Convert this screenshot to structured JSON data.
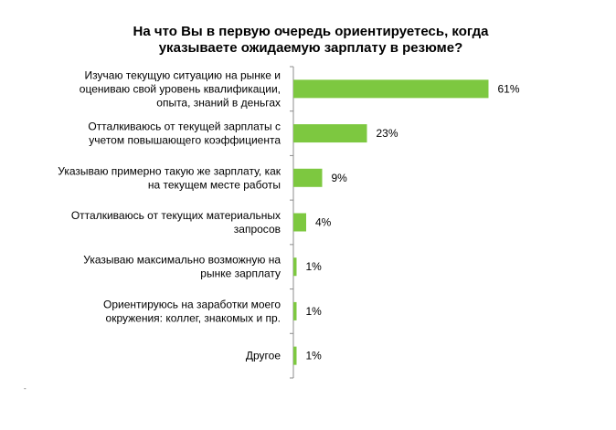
{
  "chart_data": {
    "type": "bar",
    "orientation": "horizontal",
    "title": "На что Вы в первую очередь ориентируетесь, когда\nуказываете ожидаемую зарплату в резюме?",
    "categories": [
      "Изучаю текущую ситуацию на рынке и\nоцениваю свой уровень квалификации,\nопыта, знаний в деньгах",
      "Отталкиваюсь от текущей зарплаты с\nучетом повышающего коэффициента",
      "Указываю примерно такую же зарплату, как\nна текущем месте работы",
      "Отталкиваюсь от текущих материальных\nзапросов",
      "Указываю максимально возможную на\nрынке зарплату",
      "Ориентируюсь на заработки моего\nокружения: коллег, знакомых и пр.",
      "Другое"
    ],
    "values": [
      61,
      23,
      9,
      4,
      1,
      1,
      1
    ],
    "value_labels": [
      "61%",
      "23%",
      "9%",
      "4%",
      "1%",
      "1%",
      "1%"
    ],
    "unit": "%",
    "xlim": [
      0,
      100
    ],
    "grid": false,
    "legend": "none",
    "bar_color": "#7dc840",
    "axis_color": "#8c8c8c"
  },
  "footnote": "-"
}
